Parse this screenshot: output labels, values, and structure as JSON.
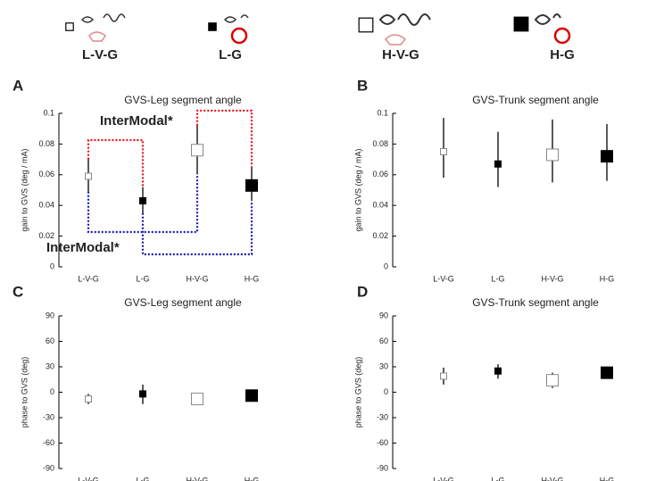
{
  "legend": [
    {
      "label": "L-V-G",
      "fill": "#ffffff",
      "size": 7
    },
    {
      "label": "L-G",
      "fill": "#000000",
      "size": 7
    },
    {
      "label": "H-V-G",
      "fill": "#ffffff",
      "size": 13
    },
    {
      "label": "H-G",
      "fill": "#000000",
      "size": 13
    }
  ],
  "chart_data": [
    {
      "type": "errorbar",
      "panel": "A",
      "title": "GVS-Leg segment angle",
      "y_label": "gain to GVS (deg / mA)",
      "categories": [
        "L-V-G",
        "L-G",
        "H-V-G",
        "H-G"
      ],
      "values": [
        0.059,
        0.043,
        0.076,
        0.053
      ],
      "lower": [
        0.049,
        0.035,
        0.061,
        0.043
      ],
      "upper": [
        0.07,
        0.052,
        0.092,
        0.065
      ],
      "ylim": [
        0,
        0.1
      ],
      "yticks": [
        0,
        0.02,
        0.04,
        0.06,
        0.08,
        0.1
      ],
      "annotations": [
        {
          "text": "InterModal*",
          "color": "#e8141c"
        },
        {
          "text": "InterModal*",
          "color": "#1a1ab4"
        }
      ]
    },
    {
      "type": "errorbar",
      "panel": "B",
      "title": "GVS-Trunk segment angle",
      "y_label": "gain to GVS (deg / mA)",
      "categories": [
        "L-V-G",
        "L-G",
        "H-V-G",
        "H-G"
      ],
      "values": [
        0.075,
        0.067,
        0.073,
        0.072
      ],
      "lower": [
        0.058,
        0.052,
        0.055,
        0.056
      ],
      "upper": [
        0.097,
        0.088,
        0.096,
        0.093
      ],
      "ylim": [
        0,
        0.1
      ],
      "yticks": [
        0,
        0.02,
        0.04,
        0.06,
        0.08,
        0.1
      ]
    },
    {
      "type": "errorbar",
      "panel": "C",
      "title": "GVS-Leg segment angle",
      "y_label": "phase to GVS (deg)",
      "categories": [
        "L-V-G",
        "L-G",
        "H-V-G",
        "H-G"
      ],
      "values": [
        -8,
        -2,
        -8,
        -4
      ],
      "lower": [
        -14,
        -14,
        -9,
        -6
      ],
      "upper": [
        -2,
        9,
        -7,
        -2
      ],
      "ylim": [
        -90,
        90
      ],
      "yticks": [
        -90,
        -60,
        -30,
        0,
        30,
        60,
        90
      ]
    },
    {
      "type": "errorbar",
      "panel": "D",
      "title": "GVS-Trunk segment angle",
      "y_label": "phase to GVS (deg)",
      "categories": [
        "L-V-G",
        "L-G",
        "H-V-G",
        "H-G"
      ],
      "values": [
        19,
        25,
        14,
        23
      ],
      "lower": [
        9,
        16,
        5,
        16
      ],
      "upper": [
        29,
        33,
        23,
        28
      ],
      "ylim": [
        -90,
        90
      ],
      "yticks": [
        -90,
        -60,
        -30,
        0,
        30,
        60,
        90
      ]
    }
  ]
}
